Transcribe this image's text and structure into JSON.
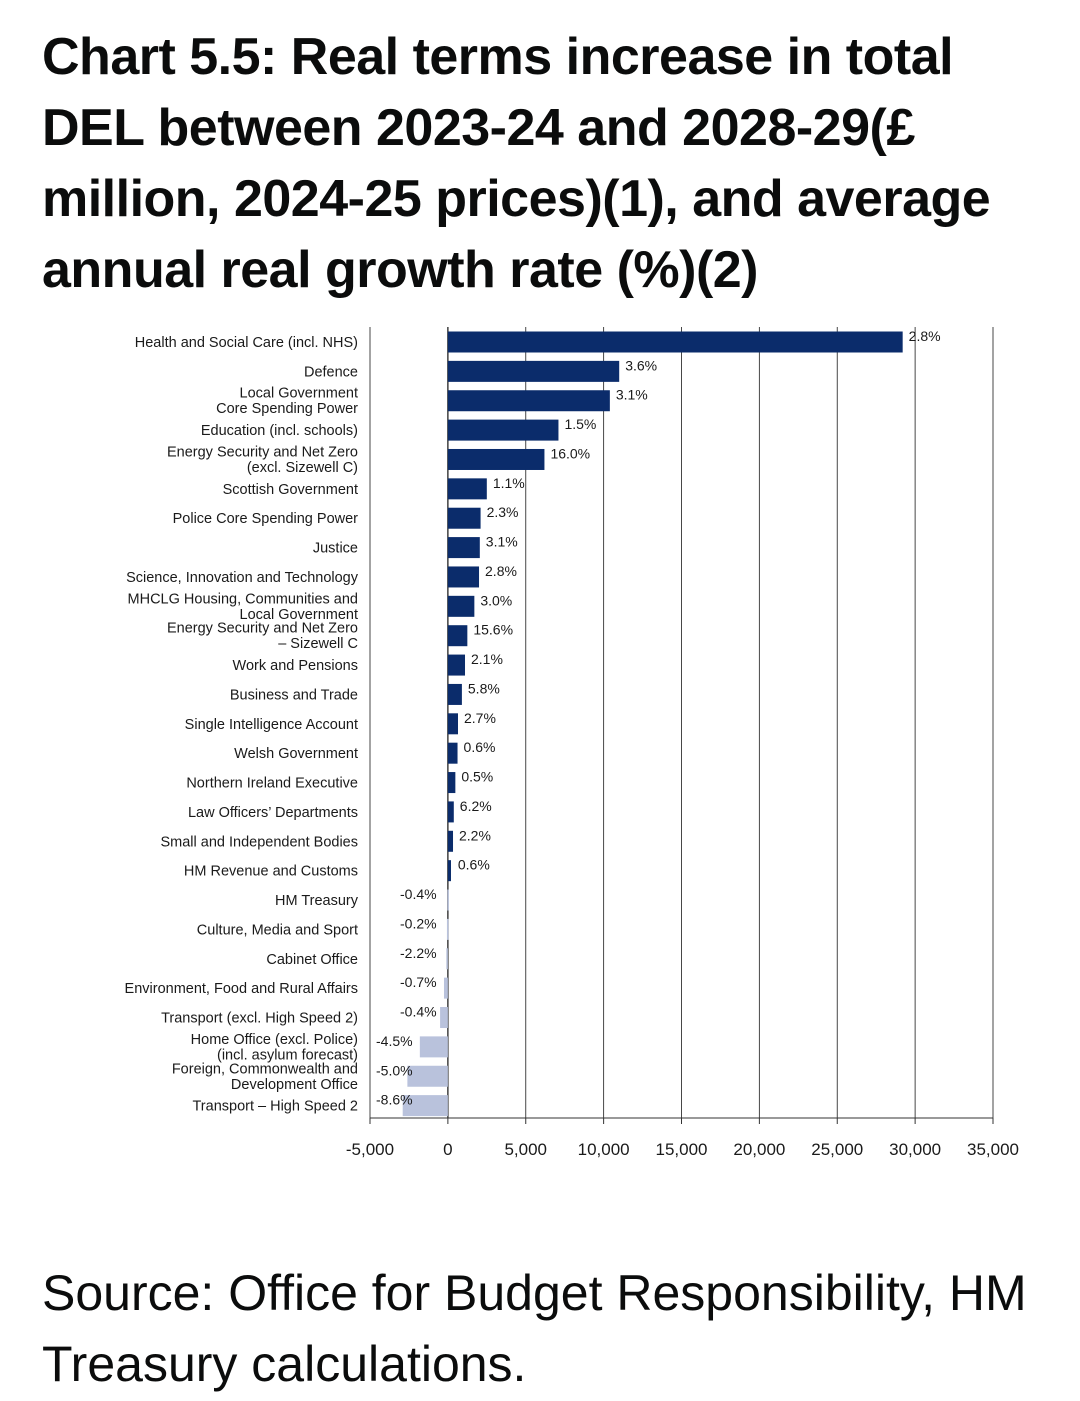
{
  "title": "Chart 5.5: Real terms increase in total DEL between 2023-24 and 2028-29(£ million, 2024-25 prices)(1), and average annual real growth rate (%)(2)",
  "source": "Source: Office for Budget Responsibility, HM Treasury calculations.",
  "colors": {
    "positive": "#0b2c6b",
    "negative": "#b9c2dc",
    "grid": "#333333",
    "text": "#0b0c0c"
  },
  "chart_data": {
    "type": "bar",
    "orientation": "horizontal",
    "title": "Chart 5.5: Real terms increase in total DEL between 2023-24 and 2028-29(£ million, 2024-25 prices)(1), and average annual real growth rate (%)(2)",
    "xlim": [
      -5000,
      35000
    ],
    "xticks": [
      -5000,
      0,
      5000,
      10000,
      15000,
      20000,
      25000,
      30000,
      35000
    ],
    "xtick_labels": [
      "-5,000",
      "0",
      "5,000",
      "10,000",
      "15,000",
      "20,000",
      "25,000",
      "30,000",
      "35,000"
    ],
    "grid": true,
    "categories": [
      [
        "Health and Social Care (incl. NHS)"
      ],
      [
        "Defence"
      ],
      [
        "Local Government",
        "Core Spending Power"
      ],
      [
        "Education (incl. schools)"
      ],
      [
        "Energy Security and Net Zero",
        "(excl. Sizewell C)"
      ],
      [
        "Scottish Government"
      ],
      [
        "Police Core Spending Power"
      ],
      [
        "Justice"
      ],
      [
        "Science, Innovation and Technology"
      ],
      [
        "MHCLG Housing, Communities and",
        "Local Government"
      ],
      [
        "Energy Security and Net Zero",
        "– Sizewell C"
      ],
      [
        "Work and Pensions"
      ],
      [
        "Business and Trade"
      ],
      [
        "Single Intelligence Account"
      ],
      [
        "Welsh Government"
      ],
      [
        "Northern Ireland Executive"
      ],
      [
        "Law Officers’ Departments"
      ],
      [
        "Small and Independent Bodies"
      ],
      [
        "HM Revenue and Customs"
      ],
      [
        "HM Treasury"
      ],
      [
        "Culture, Media and Sport"
      ],
      [
        "Cabinet Office"
      ],
      [
        "Environment, Food and Rural Affairs"
      ],
      [
        "Transport (excl. High Speed 2)"
      ],
      [
        "Home Office (excl. Police)",
        "(incl. asylum forecast)"
      ],
      [
        "Foreign, Commonwealth and",
        "Development Office"
      ],
      [
        "Transport – High Speed 2"
      ]
    ],
    "values": [
      29200,
      11000,
      10400,
      7100,
      6200,
      2500,
      2100,
      2050,
      2000,
      1700,
      1250,
      1100,
      900,
      650,
      620,
      480,
      380,
      330,
      200,
      -30,
      -60,
      -100,
      -250,
      -500,
      -1800,
      -2600,
      -2900
    ],
    "data_labels": [
      "2.8%",
      "3.6%",
      "3.1%",
      "1.5%",
      "16.0%",
      "1.1%",
      "2.3%",
      "3.1%",
      "2.8%",
      "3.0%",
      "15.6%",
      "2.1%",
      "5.8%",
      "2.7%",
      "0.6%",
      "0.5%",
      "6.2%",
      "2.2%",
      "0.6%",
      "-0.4%",
      "-0.2%",
      "-2.2%",
      "-0.7%",
      "-0.4%",
      "-4.5%",
      "-5.0%",
      "-8.6%"
    ]
  }
}
